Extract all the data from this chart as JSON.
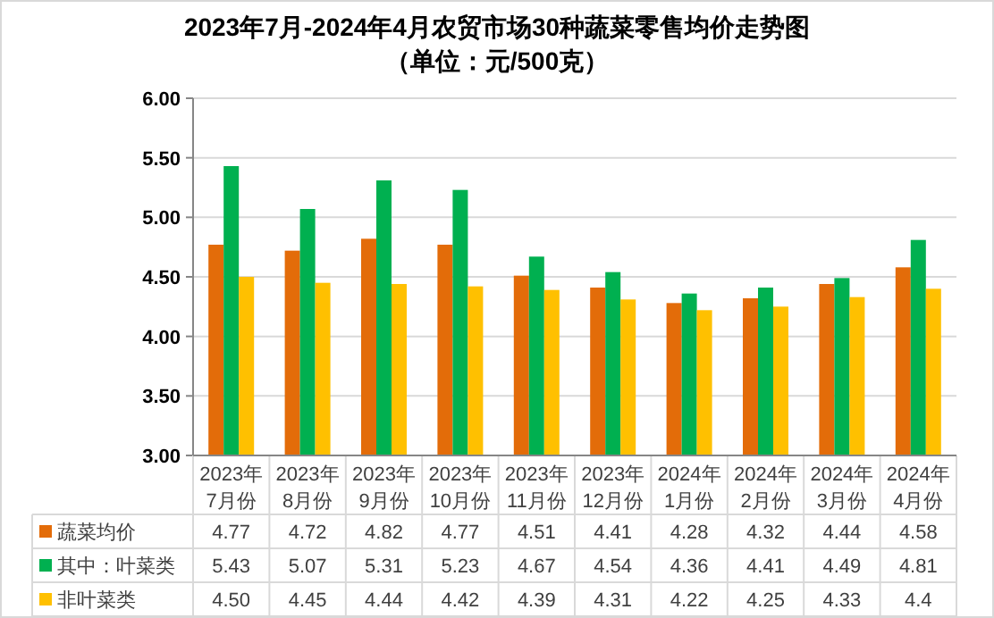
{
  "chart_data": {
    "type": "bar",
    "title": "2023年7月-2024年4月农贸市场30种蔬菜零售均价走势图",
    "subtitle": "（单位：元/500克）",
    "categories": [
      "2023年\n7月份",
      "2023年\n8月份",
      "2023年\n9月份",
      "2023年\n10月份",
      "2023年\n11月份",
      "2023年\n12月份",
      "2024年\n1月份",
      "2024年\n2月份",
      "2024年\n3月份",
      "2024年\n4月份"
    ],
    "series": [
      {
        "name": "蔬菜均价",
        "color": "#e36c09",
        "values": [
          4.77,
          4.72,
          4.82,
          4.77,
          4.51,
          4.41,
          4.28,
          4.32,
          4.44,
          4.58
        ],
        "value_labels": [
          "4.77",
          "4.72",
          "4.82",
          "4.77",
          "4.51",
          "4.41",
          "4.28",
          "4.32",
          "4.44",
          "4.58"
        ]
      },
      {
        "name": "其中：叶菜类",
        "color": "#00b050",
        "values": [
          5.43,
          5.07,
          5.31,
          5.23,
          4.67,
          4.54,
          4.36,
          4.41,
          4.49,
          4.81
        ],
        "value_labels": [
          "5.43",
          "5.07",
          "5.31",
          "5.23",
          "4.67",
          "4.54",
          "4.36",
          "4.41",
          "4.49",
          "4.81"
        ]
      },
      {
        "name": "非叶菜类",
        "color": "#ffc000",
        "values": [
          4.5,
          4.45,
          4.44,
          4.42,
          4.39,
          4.31,
          4.22,
          4.25,
          4.33,
          4.4
        ],
        "value_labels": [
          "4.50",
          "4.45",
          "4.44",
          "4.42",
          "4.39",
          "4.31",
          "4.22",
          "4.25",
          "4.33",
          "4.4"
        ]
      }
    ],
    "ylim": [
      3,
      6
    ],
    "yticks": [
      {
        "value": 3,
        "label": "3.00"
      },
      {
        "value": 3.5,
        "label": "3.50"
      },
      {
        "value": 4,
        "label": "4.00"
      },
      {
        "value": 4.5,
        "label": "4.50"
      },
      {
        "value": 5,
        "label": "5.00"
      },
      {
        "value": 5.5,
        "label": "5.50"
      },
      {
        "value": 6,
        "label": "6.00"
      }
    ],
    "grid": "y",
    "legend": "bottom"
  }
}
